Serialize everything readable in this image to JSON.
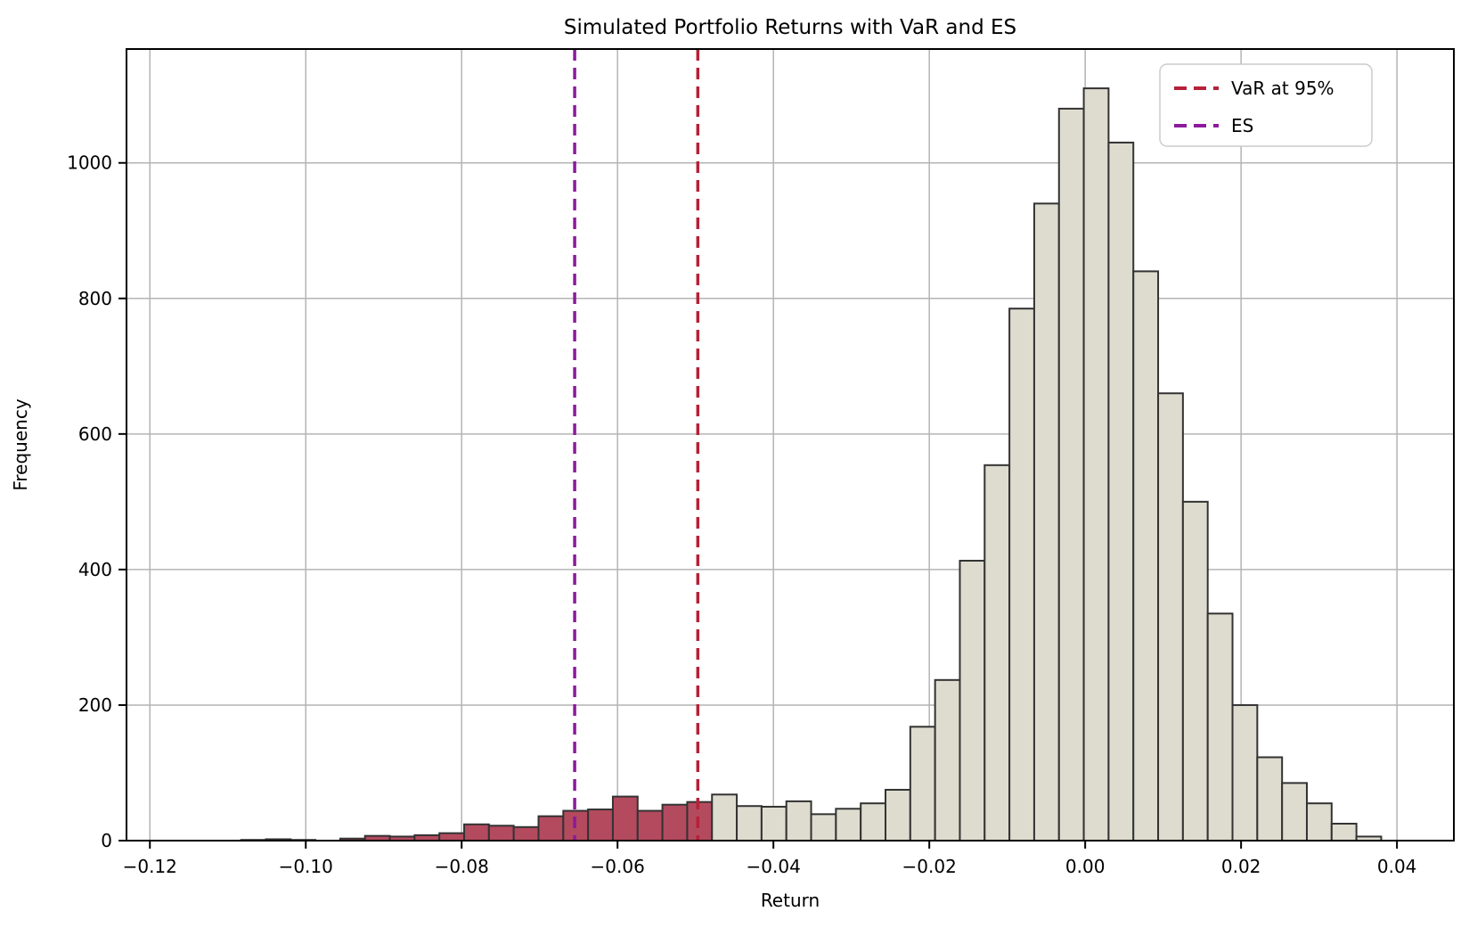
{
  "chart_data": {
    "type": "bar",
    "subtype": "histogram",
    "title": "Simulated Portfolio Returns with VaR and ES",
    "xlabel": "Return",
    "ylabel": "Frequency",
    "xlim": [
      -0.123,
      0.0473
    ],
    "ylim": [
      0,
      1168
    ],
    "grid": true,
    "xticks": [
      -0.12,
      -0.1,
      -0.08,
      -0.06,
      -0.04,
      -0.02,
      0.0,
      0.02,
      0.04
    ],
    "xtick_labels": [
      "−0.12",
      "−0.10",
      "−0.08",
      "−0.06",
      "−0.04",
      "−0.02",
      "0.00",
      "0.02",
      "0.04"
    ],
    "yticks": [
      0,
      200,
      400,
      600,
      800,
      1000
    ],
    "ytick_labels": [
      "0",
      "200",
      "400",
      "600",
      "800",
      "1000"
    ],
    "bin_start": -0.1083,
    "bin_width": 0.00318,
    "counts": [
      1,
      2,
      1,
      0,
      3,
      7,
      6,
      8,
      11,
      24,
      22,
      20,
      36,
      44,
      46,
      65,
      44,
      53,
      57,
      68,
      51,
      50,
      58,
      39,
      47,
      55,
      75,
      168,
      237,
      413,
      554,
      785,
      940,
      1080,
      1110,
      1030,
      840,
      660,
      500,
      335,
      200,
      123,
      85,
      55,
      25,
      6
    ],
    "tail_bin_count": 19,
    "var_value": -0.0497,
    "es_value": -0.0655,
    "legend": [
      {
        "label": "VaR at 95%",
        "color": "#b52138"
      },
      {
        "label": "ES",
        "color": "#8c1a9b"
      }
    ],
    "legend_position": "upper right",
    "colors": {
      "bar_fill": "#dedccf",
      "tail_bar_fill": "#b44a5e",
      "bar_edge": "#333333",
      "var_line": "#b52138",
      "es_line": "#8c1a9b",
      "grid": "#b4b4b4",
      "spine": "#000000",
      "background": "#ffffff",
      "legend_border": "#cccccc"
    }
  }
}
